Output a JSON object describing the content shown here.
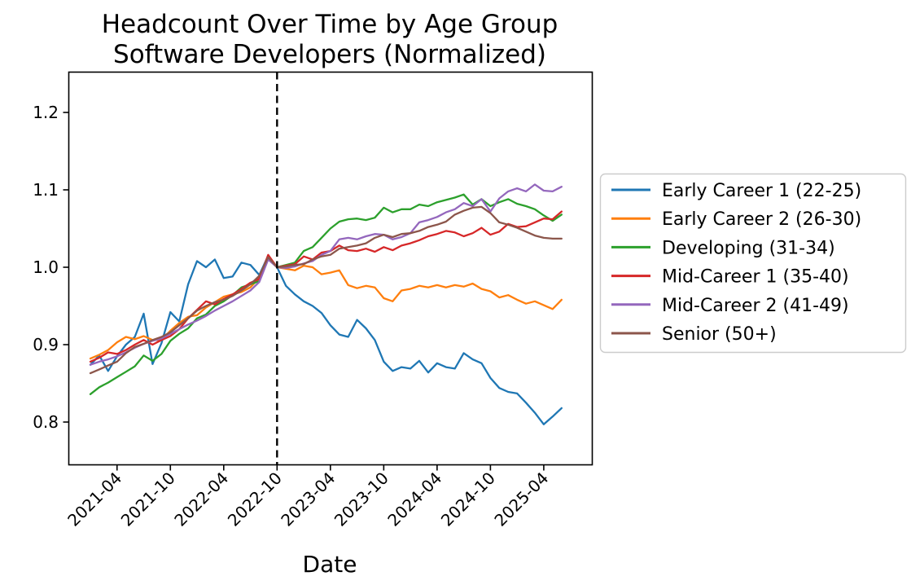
{
  "page": {
    "background": "#ffffff"
  },
  "chart_data": {
    "type": "line",
    "title": "Headcount Over Time by Age Group",
    "subtitle": "Software Developers (Normalized)",
    "xlabel": "Date",
    "ylabel": "",
    "grid": false,
    "legend_position": "right-outside",
    "ylim": [
      0.745,
      1.253
    ],
    "y_ticks": [
      0.8,
      0.9,
      1.0,
      1.1,
      1.2
    ],
    "y_tick_labels": [
      "0.8",
      "0.9",
      "1.0",
      "1.1",
      "1.2"
    ],
    "x_tick_labels": [
      "2021-04",
      "2021-10",
      "2022-04",
      "2022-10",
      "2023-04",
      "2023-10",
      "2024-04",
      "2024-10",
      "2025-04"
    ],
    "reference_line": {
      "orientation": "vertical",
      "x": "2022-10",
      "style": "dashed",
      "color": "#000000"
    },
    "x": [
      "2021-01",
      "2021-02",
      "2021-03",
      "2021-04",
      "2021-05",
      "2021-06",
      "2021-07",
      "2021-08",
      "2021-09",
      "2021-10",
      "2021-11",
      "2021-12",
      "2022-01",
      "2022-02",
      "2022-03",
      "2022-04",
      "2022-05",
      "2022-06",
      "2022-07",
      "2022-08",
      "2022-09",
      "2022-10",
      "2022-11",
      "2022-12",
      "2023-01",
      "2023-02",
      "2023-03",
      "2023-04",
      "2023-05",
      "2023-06",
      "2023-07",
      "2023-08",
      "2023-09",
      "2023-10",
      "2023-11",
      "2023-12",
      "2024-01",
      "2024-02",
      "2024-03",
      "2024-04",
      "2024-05",
      "2024-06",
      "2024-07",
      "2024-08",
      "2024-09",
      "2024-10",
      "2024-11",
      "2024-12",
      "2025-01",
      "2025-02",
      "2025-03",
      "2025-04",
      "2025-05",
      "2025-06"
    ],
    "series": [
      {
        "name": "Early Career 1 (22-25)",
        "color": "#1f77b4",
        "values": [
          0.874,
          0.886,
          0.866,
          0.885,
          0.9,
          0.91,
          0.94,
          0.875,
          0.902,
          0.942,
          0.93,
          0.978,
          1.008,
          1.0,
          1.01,
          0.986,
          0.988,
          1.006,
          1.003,
          0.99,
          1.015,
          1.0,
          0.976,
          0.965,
          0.956,
          0.95,
          0.941,
          0.925,
          0.913,
          0.91,
          0.932,
          0.921,
          0.906,
          0.878,
          0.866,
          0.871,
          0.869,
          0.879,
          0.864,
          0.876,
          0.871,
          0.869,
          0.889,
          0.881,
          0.876,
          0.857,
          0.844,
          0.839,
          0.837,
          0.825,
          0.812,
          0.797,
          0.807,
          0.818
        ]
      },
      {
        "name": "Early Career 2 (26-30)",
        "color": "#ff7f0e",
        "values": [
          0.882,
          0.887,
          0.893,
          0.903,
          0.91,
          0.907,
          0.911,
          0.906,
          0.906,
          0.918,
          0.928,
          0.936,
          0.938,
          0.948,
          0.955,
          0.962,
          0.965,
          0.968,
          0.974,
          0.986,
          1.013,
          1.0,
          0.998,
          0.996,
          1.002,
          1.0,
          0.991,
          0.993,
          0.996,
          0.977,
          0.973,
          0.976,
          0.974,
          0.96,
          0.956,
          0.97,
          0.972,
          0.976,
          0.974,
          0.977,
          0.974,
          0.977,
          0.975,
          0.979,
          0.972,
          0.969,
          0.961,
          0.964,
          0.958,
          0.953,
          0.956,
          0.951,
          0.946,
          0.958
        ]
      },
      {
        "name": "Developing (31-34)",
        "color": "#2ca02c",
        "values": [
          0.836,
          0.845,
          0.851,
          0.858,
          0.865,
          0.872,
          0.886,
          0.879,
          0.888,
          0.905,
          0.914,
          0.921,
          0.934,
          0.939,
          0.95,
          0.956,
          0.964,
          0.974,
          0.978,
          0.982,
          1.012,
          1.0,
          1.003,
          1.006,
          1.021,
          1.026,
          1.038,
          1.05,
          1.059,
          1.062,
          1.063,
          1.061,
          1.064,
          1.077,
          1.071,
          1.075,
          1.075,
          1.081,
          1.079,
          1.084,
          1.087,
          1.09,
          1.094,
          1.081,
          1.088,
          1.079,
          1.084,
          1.088,
          1.082,
          1.079,
          1.075,
          1.067,
          1.06,
          1.068
        ]
      },
      {
        "name": "Mid-Career 1 (35-40)",
        "color": "#d62728",
        "values": [
          0.878,
          0.883,
          0.89,
          0.888,
          0.893,
          0.9,
          0.906,
          0.9,
          0.906,
          0.911,
          0.92,
          0.934,
          0.945,
          0.956,
          0.952,
          0.959,
          0.965,
          0.972,
          0.98,
          0.985,
          1.016,
          1.0,
          1.002,
          1.004,
          1.014,
          1.01,
          1.019,
          1.021,
          1.028,
          1.022,
          1.021,
          1.024,
          1.02,
          1.026,
          1.022,
          1.028,
          1.031,
          1.035,
          1.04,
          1.043,
          1.047,
          1.045,
          1.04,
          1.044,
          1.051,
          1.042,
          1.046,
          1.056,
          1.052,
          1.053,
          1.058,
          1.063,
          1.062,
          1.072
        ]
      },
      {
        "name": "Mid-Career 2 (41-49)",
        "color": "#9467bd",
        "values": [
          0.874,
          0.878,
          0.881,
          0.885,
          0.89,
          0.896,
          0.901,
          0.905,
          0.908,
          0.914,
          0.92,
          0.926,
          0.931,
          0.937,
          0.944,
          0.95,
          0.956,
          0.963,
          0.97,
          0.981,
          1.01,
          1.0,
          0.999,
          1.001,
          1.005,
          1.008,
          1.016,
          1.021,
          1.036,
          1.038,
          1.036,
          1.04,
          1.043,
          1.042,
          1.036,
          1.039,
          1.044,
          1.058,
          1.061,
          1.065,
          1.071,
          1.075,
          1.083,
          1.079,
          1.088,
          1.072,
          1.089,
          1.098,
          1.102,
          1.098,
          1.107,
          1.099,
          1.098,
          1.104
        ]
      },
      {
        "name": "Senior (50+)",
        "color": "#8c564b",
        "values": [
          0.863,
          0.868,
          0.873,
          0.878,
          0.889,
          0.897,
          0.901,
          0.906,
          0.91,
          0.916,
          0.925,
          0.934,
          0.944,
          0.95,
          0.955,
          0.958,
          0.963,
          0.97,
          0.978,
          0.989,
          1.013,
          1.0,
          1.001,
          1.003,
          1.004,
          1.01,
          1.014,
          1.016,
          1.024,
          1.026,
          1.028,
          1.031,
          1.038,
          1.042,
          1.039,
          1.043,
          1.044,
          1.047,
          1.052,
          1.055,
          1.059,
          1.068,
          1.073,
          1.077,
          1.078,
          1.07,
          1.058,
          1.055,
          1.051,
          1.046,
          1.041,
          1.038,
          1.037,
          1.037
        ]
      }
    ]
  }
}
